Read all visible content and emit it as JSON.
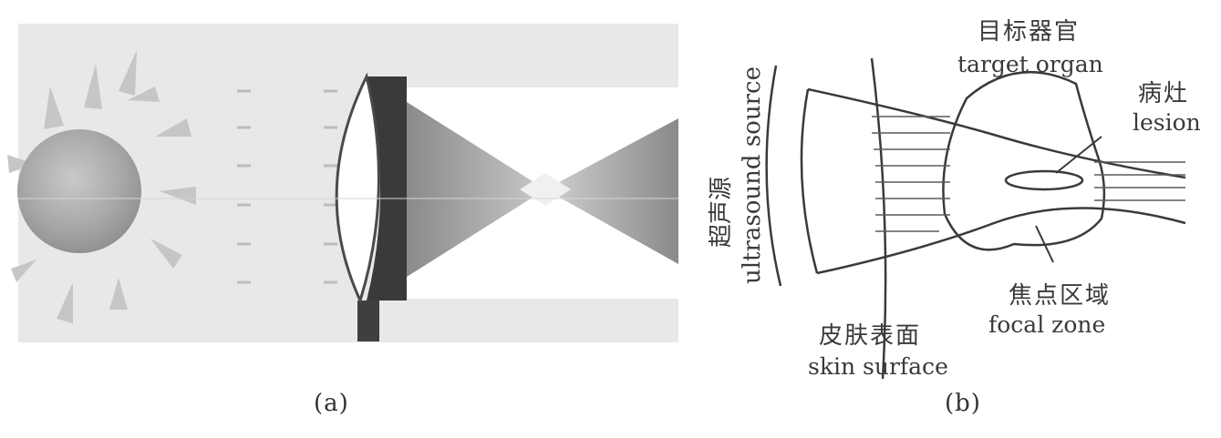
{
  "panel_a": {
    "caption": "(a)"
  },
  "panel_b": {
    "caption": "(b)",
    "labels": {
      "target_organ_zh": "目标器官",
      "target_organ_en": "target organ",
      "lesion_zh": "病灶",
      "lesion_en": "lesion",
      "ultrasound_source_zh": "超声源",
      "ultrasound_source_en": "ultrasound source",
      "skin_surface_zh": "皮肤表面",
      "skin_surface_en": "skin surface",
      "focal_zone_zh": "焦点区域",
      "focal_zone_en": "focal zone"
    }
  },
  "colors": {
    "background": "#ffffff",
    "panel_a_bg": "#e6e6e6",
    "sun": "#a9a9a9",
    "lens_frame": "#4a4a4a",
    "beam": "#8f8f8f",
    "line": "#3a3a3a"
  }
}
